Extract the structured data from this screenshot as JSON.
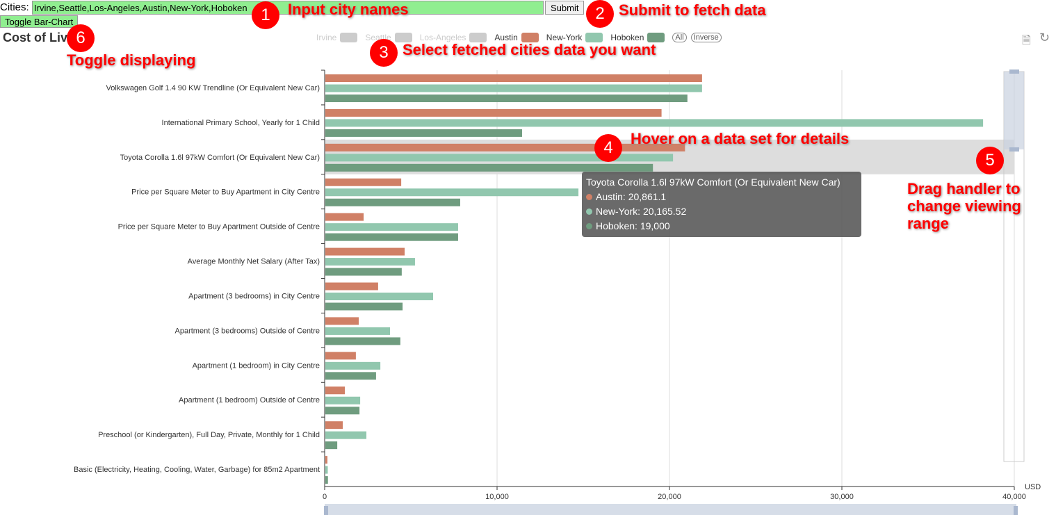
{
  "header": {
    "cities_label": "Cities:",
    "cities_value": "Irvine,Seattle,Los-Angeles,Austin,New-York,Hoboken",
    "submit": "Submit",
    "toggle": "Toggle Bar-Chart"
  },
  "title": "Cost of Liv",
  "legend": {
    "items": [
      {
        "name": "Irvine",
        "color": "#cccccc",
        "active": false
      },
      {
        "name": "Seattle",
        "color": "#cccccc",
        "active": false
      },
      {
        "name": "Los-Angeles",
        "color": "#cccccc",
        "active": false
      },
      {
        "name": "Austin",
        "color": "#d08066",
        "active": true
      },
      {
        "name": "New-York",
        "color": "#91c7ae",
        "active": true
      },
      {
        "name": "Hoboken",
        "color": "#6f9c7f",
        "active": true
      }
    ],
    "all": "All",
    "inverse": "Inverse"
  },
  "annotations": [
    {
      "n": "1",
      "text": "Input city names"
    },
    {
      "n": "2",
      "text": "Submit to fetch data"
    },
    {
      "n": "3",
      "text": "Select fetched cities data you want"
    },
    {
      "n": "4",
      "text": "Hover on a data set for details"
    },
    {
      "n": "5",
      "text": "Drag handler to change viewing range"
    },
    {
      "n": "6",
      "text": "Toggle displaying"
    }
  ],
  "tooltip": {
    "title": "Toyota Corolla 1.6l 97kW Comfort (Or Equivalent New Car)",
    "rows": [
      "Austin: 20,861.1",
      "New-York: 20,165.52",
      "Hoboken: 19,000"
    ]
  },
  "chart_data": {
    "type": "bar",
    "orientation": "horizontal",
    "unit": "USD",
    "xlim": [
      0,
      40000
    ],
    "xticks": [
      "0",
      "10,000",
      "20,000",
      "30,000",
      "40,000"
    ],
    "categories": [
      "Volkswagen Golf 1.4 90 KW Trendline (Or Equivalent New Car)",
      "International Primary School, Yearly for 1 Child",
      "Toyota Corolla 1.6l 97kW Comfort (Or Equivalent New Car)",
      "Price per Square Meter to Buy Apartment in City Centre",
      "Price per Square Meter to Buy Apartment Outside of Centre",
      "Average Monthly Net Salary (After Tax)",
      "Apartment (3 bedrooms) in City Centre",
      "Apartment (3 bedrooms) Outside of Centre",
      "Apartment (1 bedroom) in City Centre",
      "Apartment (1 bedroom) Outside of Centre",
      "Preschool (or Kindergarten), Full Day, Private, Monthly for 1 Child",
      "Basic (Electricity, Heating, Cooling, Water, Garbage) for 85m2 Apartment"
    ],
    "series": [
      {
        "name": "Austin",
        "color": "#d08066",
        "values": [
          21850,
          19500,
          20861.1,
          4400,
          2220,
          4600,
          3060,
          1935,
          1770,
          1130,
          1010,
          120
        ]
      },
      {
        "name": "New-York",
        "color": "#91c7ae",
        "values": [
          21850,
          38150,
          20165.52,
          14680,
          7700,
          5200,
          6250,
          3750,
          3190,
          2020,
          2380,
          140
        ]
      },
      {
        "name": "Hoboken",
        "color": "#6f9c7f",
        "values": [
          21000,
          11410,
          19000,
          7820,
          7700,
          4430,
          4480,
          4350,
          2940,
          1980,
          690,
          150
        ]
      }
    ]
  }
}
